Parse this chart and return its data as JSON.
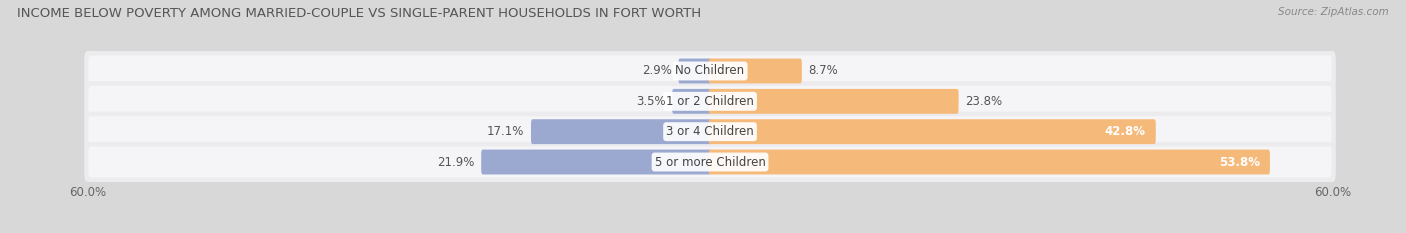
{
  "title": "INCOME BELOW POVERTY AMONG MARRIED-COUPLE VS SINGLE-PARENT HOUSEHOLDS IN FORT WORTH",
  "source": "Source: ZipAtlas.com",
  "categories": [
    "No Children",
    "1 or 2 Children",
    "3 or 4 Children",
    "5 or more Children"
  ],
  "married_values": [
    2.9,
    3.5,
    17.1,
    21.9
  ],
  "single_values": [
    8.7,
    23.8,
    42.8,
    53.8
  ],
  "x_max": 60.0,
  "married_color": "#9ba8d0",
  "single_color": "#f5b97a",
  "bar_bg_color": "#e8e8eb",
  "bar_bg_light": "#f2f2f5",
  "title_fontsize": 9.5,
  "label_fontsize": 8.5,
  "tick_fontsize": 8.5,
  "fig_bg": "#d8d8d8",
  "title_color": "#555555",
  "source_color": "#888888",
  "label_color": "#555555"
}
